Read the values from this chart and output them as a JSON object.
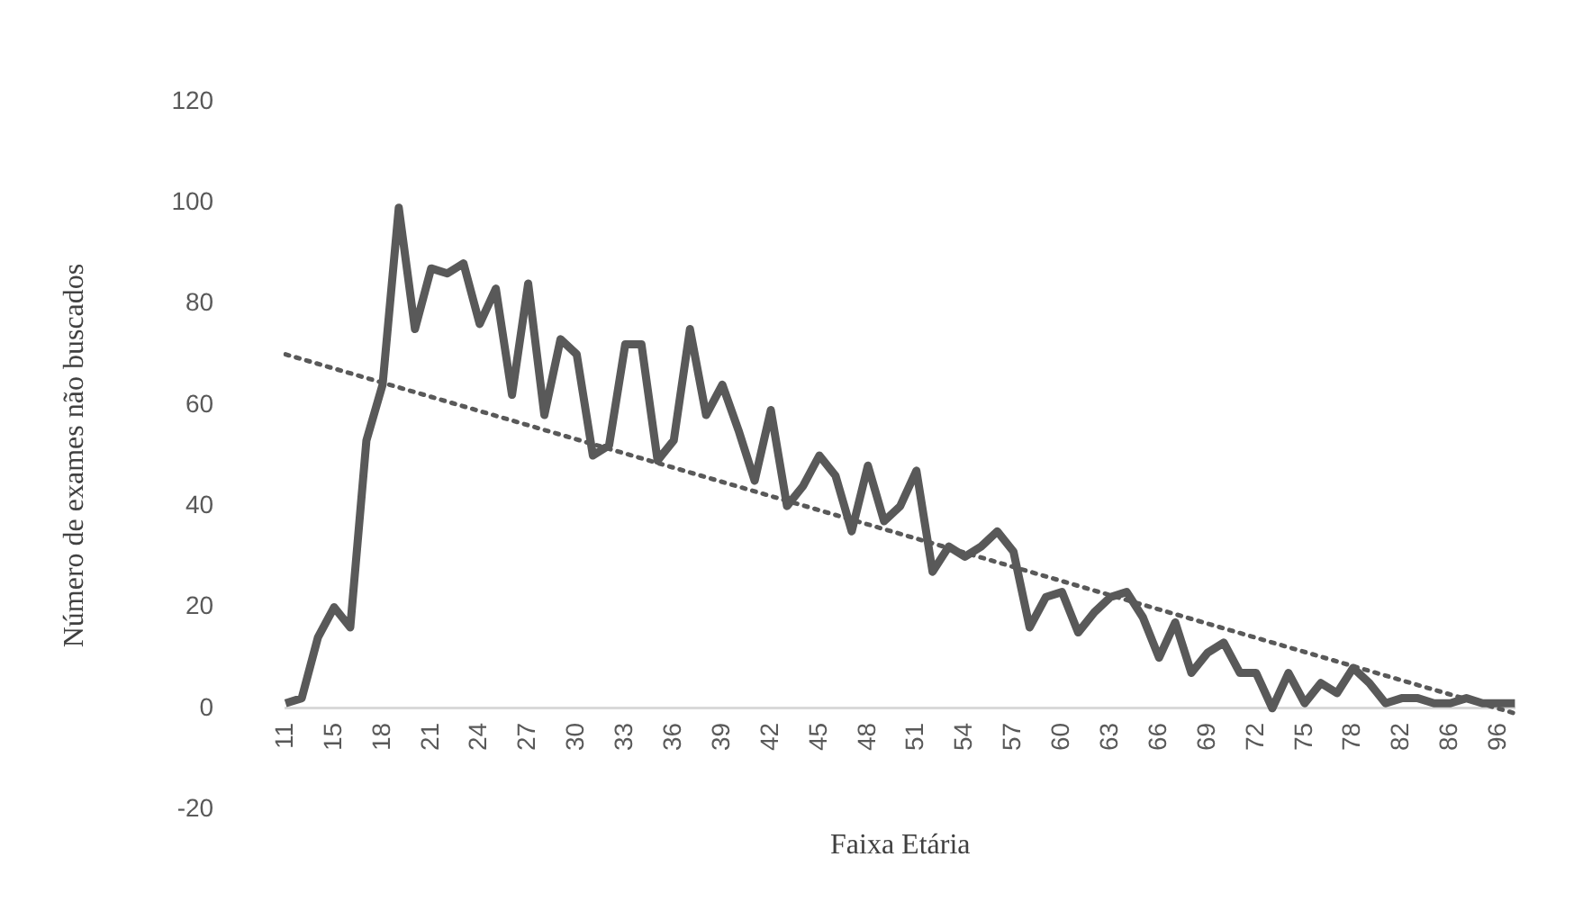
{
  "chart_data": {
    "type": "line",
    "xlabel": "Faixa Etária",
    "ylabel": "Número de exames não buscados",
    "categories": [
      "11",
      null,
      null,
      "15",
      null,
      null,
      "18",
      null,
      null,
      "21",
      null,
      null,
      "24",
      null,
      null,
      "27",
      null,
      null,
      "30",
      null,
      null,
      "33",
      null,
      null,
      "36",
      null,
      null,
      "39",
      null,
      null,
      "42",
      null,
      null,
      "45",
      null,
      null,
      "48",
      null,
      null,
      "51",
      null,
      null,
      "54",
      null,
      null,
      "57",
      null,
      null,
      "60",
      null,
      null,
      "63",
      null,
      null,
      "66",
      null,
      null,
      "69",
      null,
      null,
      "72",
      null,
      null,
      "75",
      null,
      null,
      "78",
      null,
      null,
      "82",
      null,
      null,
      "86",
      null,
      null,
      "96",
      null
    ],
    "series": [
      {
        "color": "#595959",
        "line_style": "solid",
        "values": [
          1,
          2,
          14,
          20,
          16,
          53,
          64,
          99,
          75,
          87,
          86,
          88,
          76,
          83,
          62,
          84,
          58,
          73,
          70,
          50,
          52,
          72,
          72,
          49,
          53,
          75,
          58,
          64,
          55,
          45,
          59,
          40,
          44,
          50,
          46,
          35,
          48,
          37,
          40,
          47,
          27,
          32,
          30,
          32,
          35,
          31,
          16,
          22,
          23,
          15,
          19,
          22,
          23,
          18,
          10,
          17,
          7,
          11,
          13,
          7,
          7,
          0,
          7,
          1,
          5,
          3,
          8,
          5,
          1,
          2,
          2,
          1,
          1,
          2,
          1,
          1,
          1
        ]
      },
      {
        "type": "line",
        "color": "#595959",
        "line_style": "dotted",
        "values": [
          70,
          null,
          null,
          null,
          null,
          null,
          null,
          null,
          null,
          null,
          null,
          null,
          null,
          null,
          null,
          null,
          null,
          null,
          null,
          null,
          null,
          null,
          null,
          null,
          null,
          null,
          null,
          null,
          null,
          null,
          null,
          null,
          null,
          null,
          null,
          null,
          null,
          null,
          null,
          null,
          null,
          null,
          null,
          null,
          null,
          null,
          null,
          null,
          null,
          null,
          null,
          null,
          null,
          null,
          null,
          null,
          null,
          null,
          null,
          null,
          null,
          null,
          null,
          null,
          null,
          null,
          null,
          null,
          null,
          null,
          null,
          null,
          null,
          null,
          null,
          null,
          -1
        ]
      }
    ],
    "ylim": [
      -20,
      120
    ],
    "yticks": [
      -20,
      0,
      20,
      40,
      60,
      80,
      100,
      120
    ],
    "grid": false,
    "legend": false,
    "marker": "none"
  }
}
